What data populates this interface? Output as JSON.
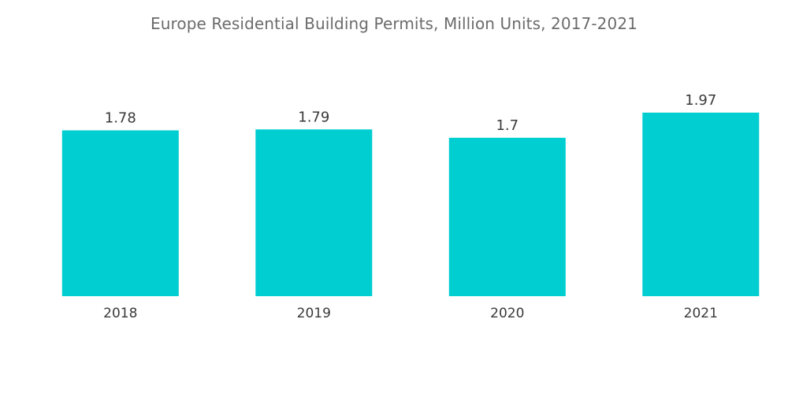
{
  "chart_data": {
    "type": "bar",
    "title": "Europe Residential Building Permits, Million Units, 2017-2021",
    "categories": [
      "2018",
      "2019",
      "2020",
      "2021"
    ],
    "values": [
      1.78,
      1.79,
      1.7,
      1.97
    ],
    "data_labels": [
      "1.78",
      "1.79",
      "1.7",
      "1.97"
    ],
    "xlabel": "",
    "ylabel": "",
    "ylim": [
      0,
      1.97
    ],
    "grid": false,
    "legend": "none",
    "colors": {
      "bar": "#00CED1"
    }
  }
}
